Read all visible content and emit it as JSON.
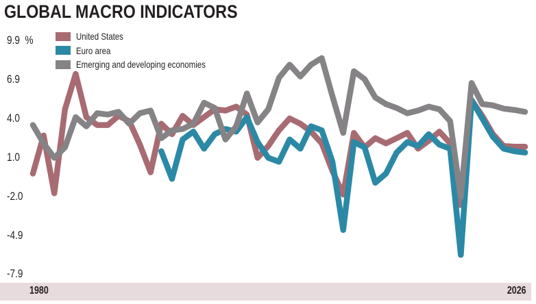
{
  "chart_data": {
    "type": "line",
    "title": "GLOBAL MACRO INDICATORS",
    "ylabel_unit": "%",
    "xlabel": "",
    "ylim": [
      -7.9,
      9.9
    ],
    "yticks": [
      "9.9",
      "6.9",
      "4.0",
      "1.0",
      "-2.0",
      "-4.9",
      "-7.9"
    ],
    "ytick_values": [
      9.9,
      6.9,
      4.0,
      1.0,
      -2.0,
      -4.9,
      -7.9
    ],
    "xticks": [
      "1980",
      "2026"
    ],
    "x_start": 1980,
    "x_end": 2026,
    "legend_placement": "top-left",
    "grid": false,
    "series": [
      {
        "name": "United States",
        "color": "#a86b72",
        "start": 1980,
        "values": [
          -0.2,
          2.7,
          -1.7,
          4.7,
          7.4,
          4.1,
          3.5,
          3.5,
          4.2,
          3.8,
          2.0,
          -0.1,
          3.6,
          2.8,
          4.2,
          3.5,
          4.1,
          4.7,
          4.6,
          4.9,
          4.3,
          1.0,
          1.9,
          3.1,
          4.0,
          3.6,
          3.0,
          2.1,
          0.0,
          -1.8,
          2.9,
          1.8,
          2.5,
          2.1,
          2.5,
          2.9,
          1.7,
          2.3,
          3.0,
          2.1,
          -2.6,
          5.4,
          4.2,
          2.8,
          1.9,
          1.85,
          1.85
        ]
      },
      {
        "name": "Euro area",
        "color": "#2b89a6",
        "start": 1992,
        "values": [
          1.5,
          -0.6,
          2.4,
          3.0,
          1.7,
          2.8,
          3.2,
          3.0,
          4.1,
          2.2,
          1.0,
          0.7,
          2.4,
          1.7,
          3.4,
          3.1,
          0.7,
          -4.5,
          2.2,
          1.8,
          -0.9,
          -0.2,
          1.4,
          2.2,
          1.9,
          2.8,
          2.0,
          1.7,
          -6.4,
          5.4,
          4.0,
          2.6,
          1.7,
          1.5,
          1.4
        ]
      },
      {
        "name": "Emerging and developing economies",
        "color": "#858385",
        "start": 1980,
        "values": [
          3.5,
          2.1,
          1.0,
          1.8,
          4.1,
          3.4,
          4.4,
          4.3,
          4.5,
          3.6,
          4.4,
          4.6,
          2.5,
          3.1,
          3.2,
          3.6,
          5.2,
          4.8,
          2.4,
          3.4,
          5.9,
          3.7,
          4.7,
          7.1,
          8.1,
          7.2,
          8.1,
          8.6,
          5.7,
          2.9,
          7.6,
          7.0,
          5.6,
          5.1,
          4.8,
          4.4,
          4.6,
          4.9,
          4.7,
          3.8,
          -2.0,
          6.7,
          5.1,
          5.0,
          4.75,
          4.65,
          4.5
        ]
      }
    ]
  }
}
